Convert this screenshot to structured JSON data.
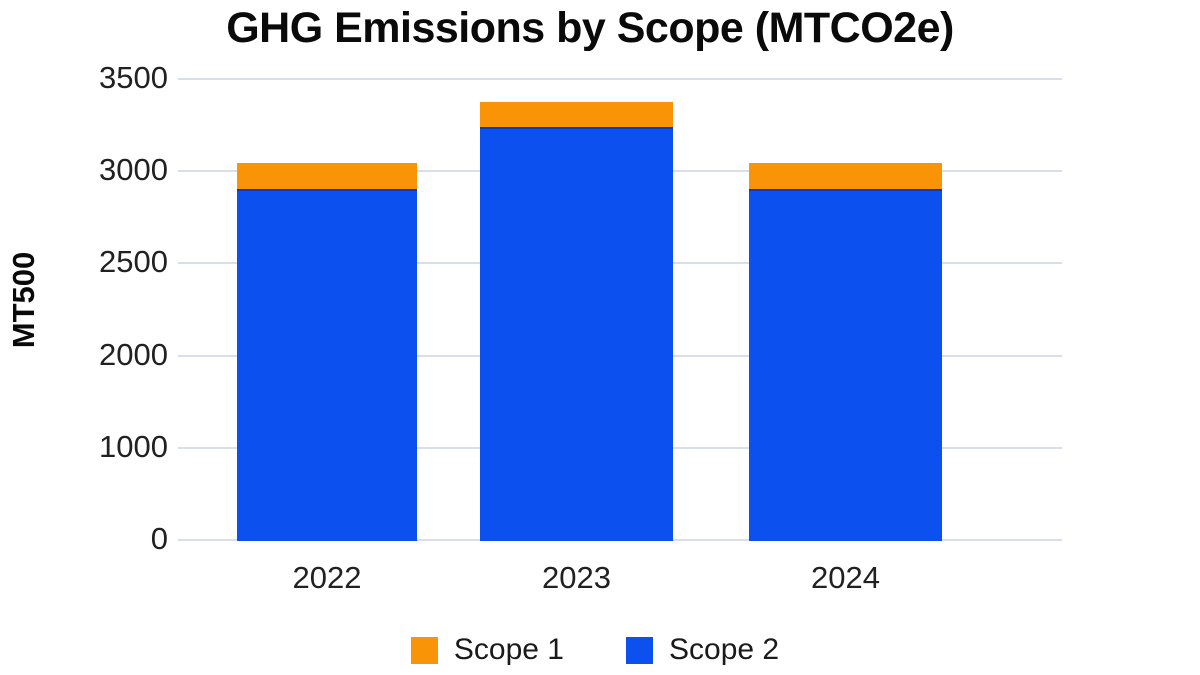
{
  "title": "GHG Emissions by Scope (MTCO2e)",
  "colors": {
    "scope1_orange": "#F99406",
    "scope2_blue": "#0C50F0",
    "gridline": "#D9DFE8",
    "title_text": "#0A0A0A",
    "axis_text": "#212121",
    "background": "#FFFFFF"
  },
  "chart_data": {
    "type": "bar",
    "stacked": true,
    "title": "GHG Emissions by Scope (MTCO2e)",
    "ylabel": "MT500",
    "xlabel": "",
    "categories": [
      "2022",
      "2023",
      "2024"
    ],
    "series": [
      {
        "name": "Scope 1",
        "color": "#F99406",
        "values": [
          140,
          135,
          140
        ]
      },
      {
        "name": "Scope 2",
        "color": "#0C50F0",
        "values": [
          2900,
          3235,
          2900
        ]
      }
    ],
    "stack_bottom_to_top": [
      "Scope 2",
      "Scope 1"
    ],
    "y_tick_labels": [
      "3500",
      "3000",
      "2500",
      "2000",
      "1000",
      "0"
    ],
    "ylim": [
      0,
      3500
    ],
    "value_per_gridline_step": 500,
    "grid": true,
    "legend_position": "bottom"
  },
  "legend": {
    "items": [
      {
        "label": "Scope 1",
        "color": "#F99406"
      },
      {
        "label": "Scope 2",
        "color": "#0C50F0"
      }
    ]
  }
}
